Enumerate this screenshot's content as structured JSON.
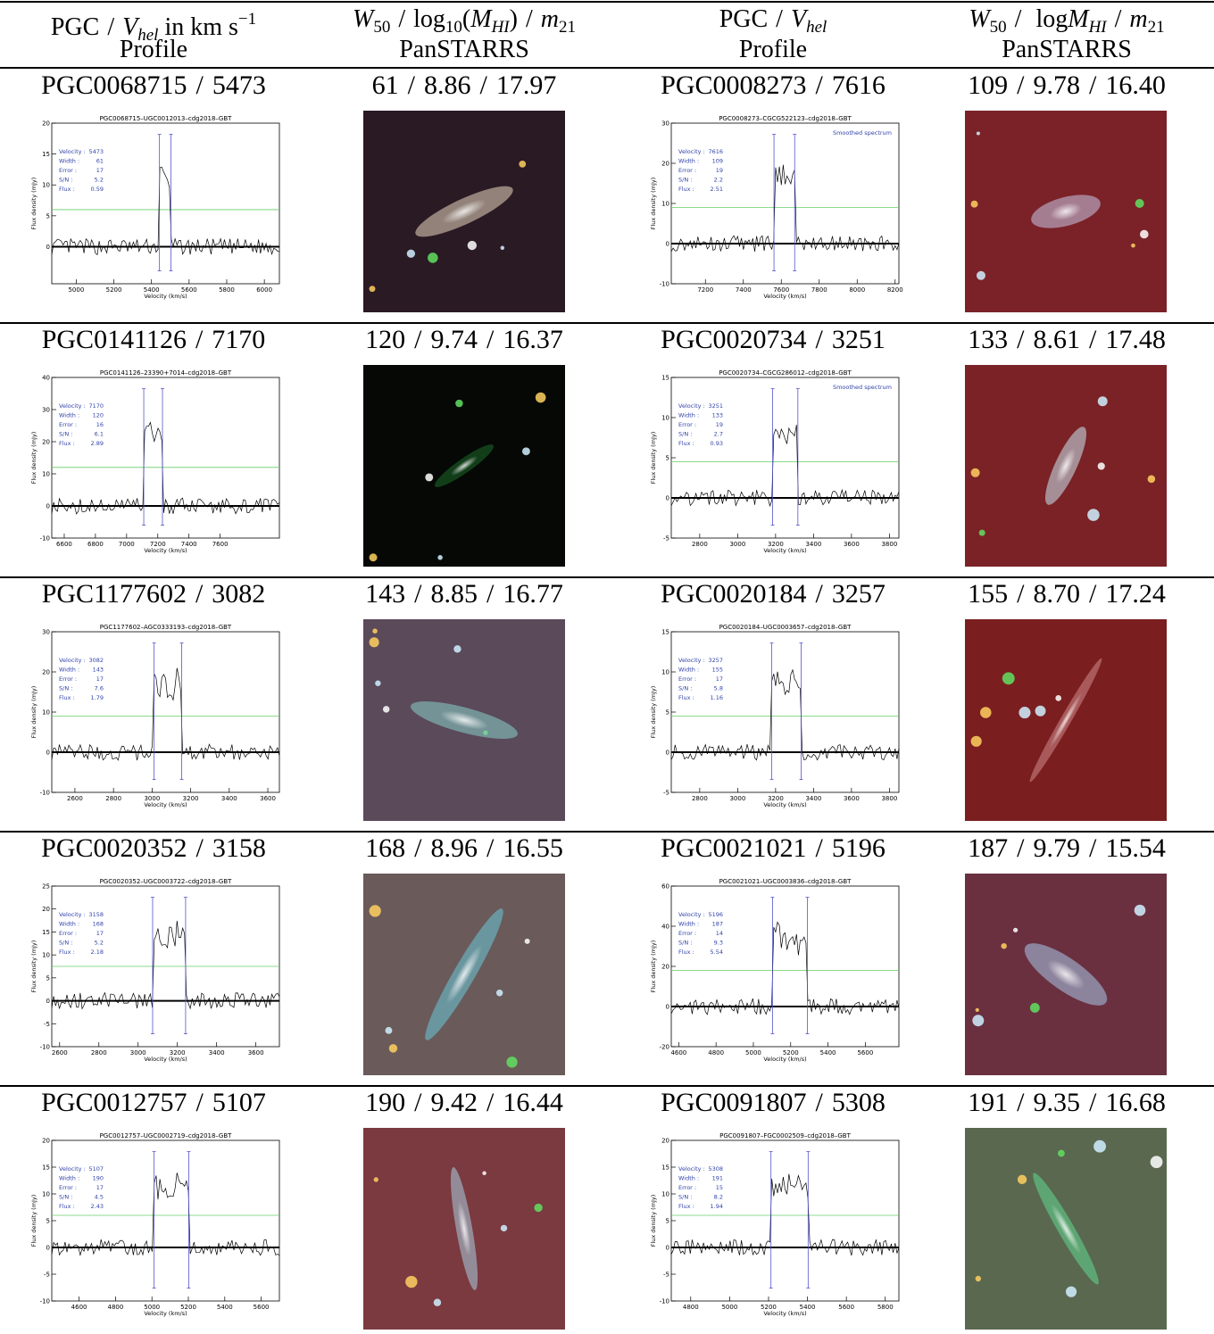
{
  "header": {
    "row1": [
      [
        {
          "t": "PGC",
          "s": "n"
        },
        {
          "t": "/",
          "s": "sep"
        },
        {
          "t": "V",
          "s": "i"
        },
        {
          "t": "hel",
          "s": "subi"
        },
        {
          "t": "in km s",
          "s": "w"
        },
        {
          "t": "−1",
          "s": "sup"
        }
      ],
      [
        {
          "t": "W",
          "s": "i"
        },
        {
          "t": "50",
          "s": "sub"
        },
        {
          "t": "/",
          "s": "sep"
        },
        {
          "t": "log",
          "s": "n"
        },
        {
          "t": "10",
          "s": "sub"
        },
        {
          "t": "(",
          "s": "n"
        },
        {
          "t": "M",
          "s": "i"
        },
        {
          "t": "HI",
          "s": "subi"
        },
        {
          "t": ")",
          "s": "n"
        },
        {
          "t": "/",
          "s": "sep"
        },
        {
          "t": "m",
          "s": "i"
        },
        {
          "t": "21",
          "s": "sub"
        }
      ],
      [
        {
          "t": "PGC",
          "s": "n"
        },
        {
          "t": "/",
          "s": "sep"
        },
        {
          "t": "V",
          "s": "i"
        },
        {
          "t": "hel",
          "s": "subi"
        }
      ],
      [
        {
          "t": "W",
          "s": "i"
        },
        {
          "t": "50",
          "s": "sub"
        },
        {
          "t": "/",
          "s": "sep"
        },
        {
          "t": "log",
          "s": "w"
        },
        {
          "t": "M",
          "s": "i"
        },
        {
          "t": "HI",
          "s": "subi"
        },
        {
          "t": "/",
          "s": "sep"
        },
        {
          "t": "m",
          "s": "i"
        },
        {
          "t": "21",
          "s": "sub"
        }
      ]
    ],
    "row2": [
      "Profile",
      "PanSTARRS",
      "Profile",
      "PanSTARRS"
    ]
  },
  "separator": "/",
  "profile_labels": [
    "Velocity :",
    "Width :",
    "Error :",
    "S/N :",
    "Flux :"
  ],
  "x_axis_label": "Velocity (km/s)",
  "y_axis_label": "Flux density (mJy)",
  "entries": [
    {
      "pgc": "PGC0068715",
      "vhel": "5473",
      "w50": "61",
      "logmhi": "8.86",
      "m21": "17.97",
      "profile": {
        "title": "PGC0068715–UGC0012013–cdg2018–GBT",
        "velocity": 5473,
        "width": 61,
        "error": 17,
        "sn": 5.2,
        "flux": 0.59,
        "xlim": [
          4870,
          6080
        ],
        "ylim": [
          -6,
          20
        ],
        "xticks": [
          5000,
          5200,
          5400,
          5600,
          5800,
          6000
        ],
        "yticks": [
          0,
          5,
          10,
          15,
          20
        ]
      }
    },
    {
      "pgc": "PGC0008273",
      "vhel": "7616",
      "w50": "109",
      "logmhi": "9.78",
      "m21": "16.40",
      "profile": {
        "title": "PGC0008273–CGCG522123–cdg2018–GBT",
        "velocity": 7616,
        "width": 109,
        "error": 19,
        "sn": 2.2,
        "flux": 2.51,
        "note": "Smoothed spectrum",
        "xlim": [
          7020,
          8220
        ],
        "ylim": [
          -10,
          30
        ],
        "xticks": [
          7200,
          7400,
          7600,
          7800,
          8000,
          8200
        ],
        "yticks": [
          -10,
          0,
          10,
          20,
          30
        ]
      }
    },
    {
      "pgc": "PGC0141126",
      "vhel": "7170",
      "w50": "120",
      "logmhi": "9.74",
      "m21": "16.37",
      "profile": {
        "title": "PGC0141126–23390+7014–cdg2018–GBT",
        "velocity": 7170,
        "width": 120,
        "error": 16,
        "sn": 6.1,
        "flux": 2.89,
        "xlim": [
          6520,
          7980
        ],
        "ylim": [
          -10,
          40
        ],
        "xticks": [
          6600,
          6800,
          7000,
          7200,
          7400,
          7600
        ],
        "yticks": [
          -10,
          0,
          10,
          20,
          30,
          40
        ]
      }
    },
    {
      "pgc": "PGC0020734",
      "vhel": "3251",
      "w50": "133",
      "logmhi": "8.61",
      "m21": "17.48",
      "profile": {
        "title": "PGC0020734–CGCG286012–cdg2018–GBT",
        "velocity": 3251,
        "width": 133,
        "error": 19,
        "sn": 2.7,
        "flux": 0.93,
        "note": "Smoothed spectrum",
        "xlim": [
          2650,
          3850
        ],
        "ylim": [
          -5,
          15
        ],
        "xticks": [
          2800,
          3000,
          3200,
          3400,
          3600,
          3800
        ],
        "yticks": [
          -5,
          0,
          5,
          10,
          15
        ]
      }
    },
    {
      "pgc": "PGC1177602",
      "vhel": "3082",
      "w50": "143",
      "logmhi": "8.85",
      "m21": "16.77",
      "profile": {
        "title": "PGC1177602–AGC0333193–cdg2018–GBT",
        "velocity": 3082,
        "width": 143,
        "error": 17,
        "sn": 7.6,
        "flux": 1.79,
        "xlim": [
          2480,
          3660
        ],
        "ylim": [
          -10,
          30
        ],
        "xticks": [
          2600,
          2800,
          3000,
          3200,
          3400,
          3600
        ],
        "yticks": [
          -10,
          0,
          10,
          20,
          30
        ]
      }
    },
    {
      "pgc": "PGC0020184",
      "vhel": "3257",
      "w50": "155",
      "logmhi": "8.70",
      "m21": "17.24",
      "profile": {
        "title": "PGC0020184–UGC0003657–cdg2018–GBT",
        "velocity": 3257,
        "width": 155,
        "error": 17,
        "sn": 5.8,
        "flux": 1.16,
        "xlim": [
          2650,
          3850
        ],
        "ylim": [
          -5,
          15
        ],
        "xticks": [
          2800,
          3000,
          3200,
          3400,
          3600,
          3800
        ],
        "yticks": [
          -5,
          0,
          5,
          10,
          15
        ]
      }
    },
    {
      "pgc": "PGC0020352",
      "vhel": "3158",
      "w50": "168",
      "logmhi": "8.96",
      "m21": "16.55",
      "profile": {
        "title": "PGC0020352–UGC0003722–cdg2018–GBT",
        "velocity": 3158,
        "width": 168,
        "error": 17,
        "sn": 5.2,
        "flux": 2.18,
        "xlim": [
          2560,
          3720
        ],
        "ylim": [
          -10,
          25
        ],
        "xticks": [
          2600,
          2800,
          3000,
          3200,
          3400,
          3600
        ],
        "yticks": [
          -10,
          -5,
          0,
          5,
          10,
          15,
          20,
          25
        ]
      }
    },
    {
      "pgc": "PGC0021021",
      "vhel": "5196",
      "w50": "187",
      "logmhi": "9.79",
      "m21": "15.54",
      "profile": {
        "title": "PGC0021021–UGC0003836–cdg2018–GBT",
        "velocity": 5196,
        "width": 187,
        "error": 14,
        "sn": 9.3,
        "flux": 5.54,
        "xlim": [
          4560,
          5780
        ],
        "ylim": [
          -20,
          60
        ],
        "xticks": [
          4600,
          4800,
          5000,
          5200,
          5400,
          5600
        ],
        "yticks": [
          -20,
          0,
          20,
          40,
          60
        ]
      }
    },
    {
      "pgc": "PGC0012757",
      "vhel": "5107",
      "w50": "190",
      "logmhi": "9.42",
      "m21": "16.44",
      "profile": {
        "title": "PGC0012757–UGC0002719–cdg2018–GBT",
        "velocity": 5107,
        "width": 190,
        "error": 17,
        "sn": 4.5,
        "flux": 2.43,
        "xlim": [
          4450,
          5700
        ],
        "ylim": [
          -10,
          20
        ],
        "xticks": [
          4600,
          4800,
          5000,
          5200,
          5400,
          5600
        ],
        "yticks": [
          -10,
          -5,
          0,
          5,
          10,
          15,
          20
        ]
      }
    },
    {
      "pgc": "PGC0091807",
      "vhel": "5308",
      "w50": "191",
      "logmhi": "9.35",
      "m21": "16.68",
      "profile": {
        "title": "PGC0091807–FGC0002509–cdg2018–GBT",
        "velocity": 5308,
        "width": 191,
        "error": 15,
        "sn": 8.2,
        "flux": 1.94,
        "xlim": [
          4700,
          5870
        ],
        "ylim": [
          -10,
          20
        ],
        "xticks": [
          4800,
          5000,
          5200,
          5400,
          5600,
          5800
        ],
        "yticks": [
          -10,
          -5,
          0,
          5,
          10,
          15,
          20
        ]
      }
    }
  ]
}
